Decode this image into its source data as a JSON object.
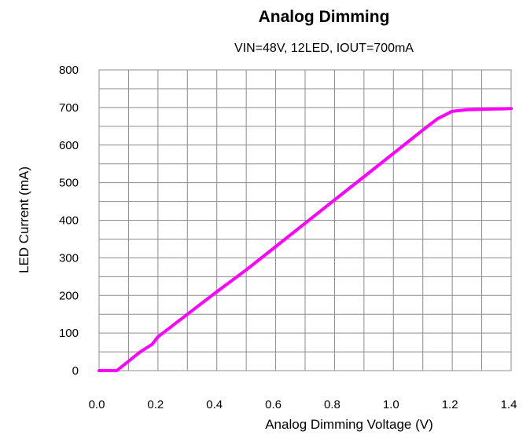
{
  "chart_data": {
    "type": "line",
    "title": "Analog Dimming",
    "subtitle": "VIN=48V, 12LED, IOUT=700mA",
    "xlabel": "Analog Dimming Voltage (V)",
    "ylabel": "LED Current (mA)",
    "xlim": [
      0,
      1.4
    ],
    "ylim": [
      0,
      800
    ],
    "x_ticks": [
      "0.0",
      "0.2",
      "0.4",
      "0.6",
      "0.8",
      "1.0",
      "1.2",
      "1.4"
    ],
    "y_ticks": [
      "0",
      "100",
      "200",
      "300",
      "400",
      "500",
      "600",
      "700",
      "800"
    ],
    "grid": true,
    "line_color": "#ff00ff",
    "series": [
      {
        "x": [
          0.0,
          0.06,
          0.1,
          0.14,
          0.18,
          0.2,
          0.3,
          0.4,
          0.5,
          0.6,
          0.7,
          0.8,
          0.9,
          1.0,
          1.1,
          1.15,
          1.2,
          1.25,
          1.3,
          1.4
        ],
        "y": [
          0,
          0,
          25,
          50,
          70,
          90,
          150,
          210,
          268,
          330,
          392,
          454,
          516,
          578,
          640,
          670,
          690,
          694,
          695,
          697
        ]
      }
    ]
  }
}
